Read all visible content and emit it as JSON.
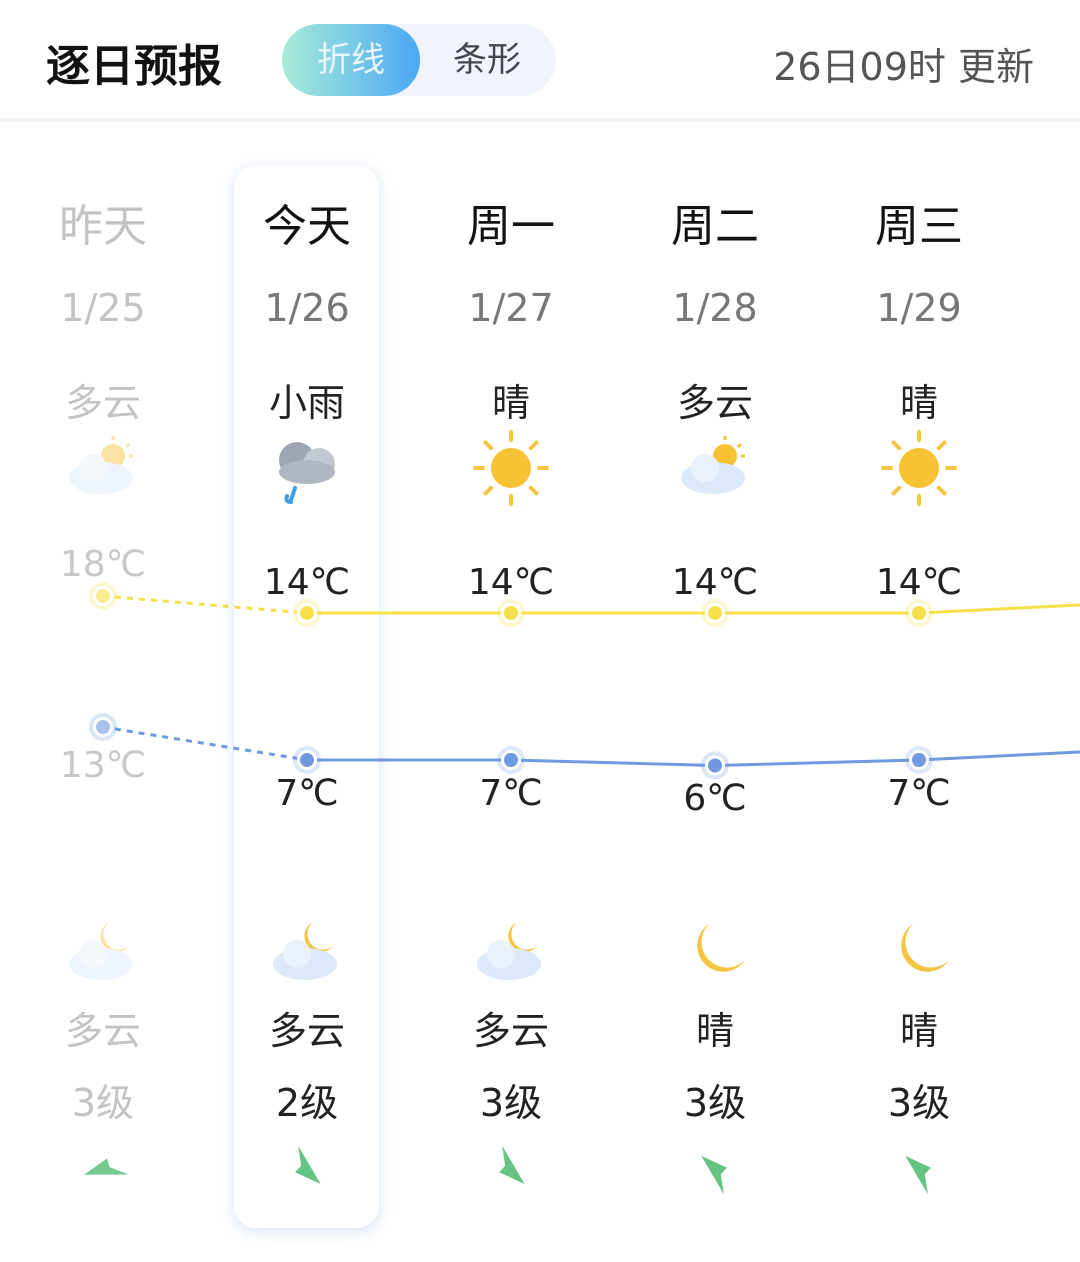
{
  "header": {
    "title": "逐日预报",
    "toggle": [
      {
        "label": "折线",
        "active": true
      },
      {
        "label": "条形",
        "active": false
      }
    ],
    "updated": "26日09时 更新"
  },
  "colors": {
    "high": "#f5e04a",
    "low": "#6f9ae0",
    "wind": "#66c483",
    "accent": "#4aa8f5"
  },
  "days": [
    {
      "day": "昨天",
      "date": "1/25",
      "day_weather": "多云",
      "day_icon": "cloud-sun-icon",
      "high": "18℃",
      "high_val": 18,
      "low": "13℃",
      "low_val": 13,
      "night_icon": "cloud-moon-icon",
      "night_weather": "多云",
      "wind": "3级",
      "wind_dir_deg": 100,
      "past": true
    },
    {
      "day": "今天",
      "date": "1/26",
      "day_weather": "小雨",
      "day_icon": "light-rain-icon",
      "high": "14℃",
      "high_val": 14,
      "low": "7℃",
      "low_val": 7,
      "night_icon": "cloud-moon-icon",
      "night_weather": "多云",
      "wind": "2级",
      "wind_dir_deg": -20,
      "past": false
    },
    {
      "day": "周一",
      "date": "1/27",
      "day_weather": "晴",
      "day_icon": "sun-icon",
      "high": "14℃",
      "high_val": 14,
      "low": "7℃",
      "low_val": 7,
      "night_icon": "cloud-moon-icon",
      "night_weather": "多云",
      "wind": "3级",
      "wind_dir_deg": -20,
      "past": false
    },
    {
      "day": "周二",
      "date": "1/28",
      "day_weather": "多云",
      "day_icon": "cloud-sun-icon",
      "high": "14℃",
      "high_val": 14,
      "low": "6℃",
      "low_val": 6,
      "night_icon": "moon-icon",
      "night_weather": "晴",
      "wind": "3级",
      "wind_dir_deg": 160,
      "past": false
    },
    {
      "day": "周三",
      "date": "1/29",
      "day_weather": "晴",
      "day_icon": "sun-icon",
      "high": "14℃",
      "high_val": 14,
      "low": "7℃",
      "low_val": 7,
      "night_icon": "moon-icon",
      "night_weather": "晴",
      "wind": "3级",
      "wind_dir_deg": 160,
      "past": false
    }
  ]
}
